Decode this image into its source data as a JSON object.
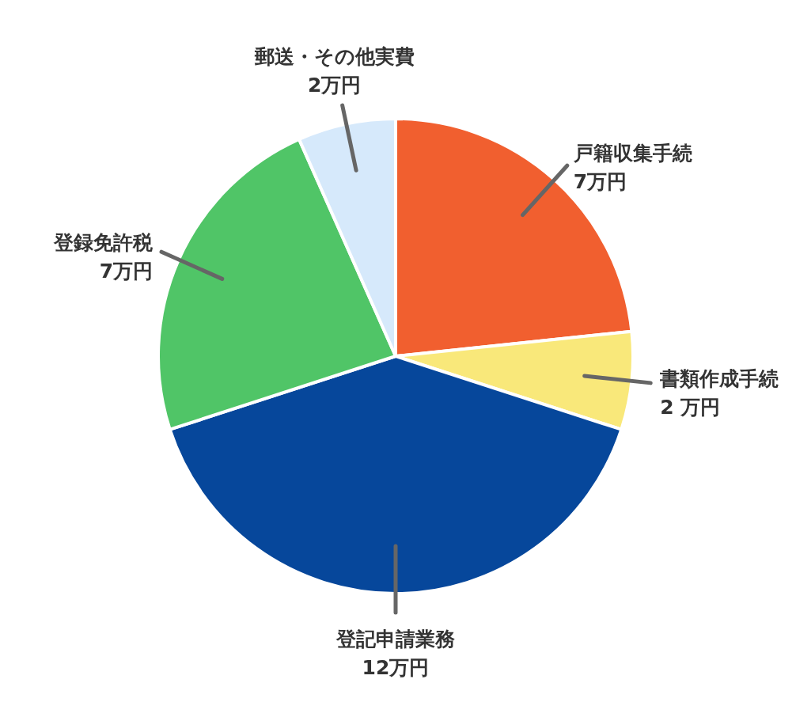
{
  "chart_data": {
    "type": "pie",
    "categories": [
      "戸籍収集手続",
      "書類作成手続",
      "登記申請業務",
      "登録免許税",
      "郵送・その他実費"
    ],
    "values": [
      7,
      2,
      12,
      7,
      2
    ],
    "value_labels": [
      "7万円",
      "2 万円",
      "12万円",
      "7万円",
      "2万円"
    ],
    "colors": [
      "#f15f2f",
      "#f9e87a",
      "#06479b",
      "#50c567",
      "#d6e9fb"
    ]
  }
}
